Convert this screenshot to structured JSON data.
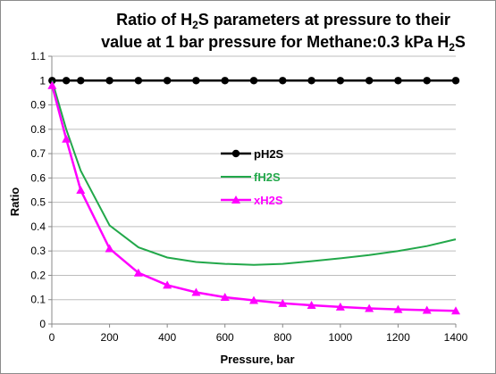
{
  "chart_data": {
    "type": "line",
    "title_parts": {
      "line1_a": "Ratio of H",
      "line1_sub": "2",
      "line1_b": "S parameters at pressure to their",
      "line2_a": "value at 1 bar pressure for Methane:0.3 kPa H",
      "line2_sub": "2",
      "line2_b": "S"
    },
    "xlabel": "Pressure, bar",
    "ylabel": "Ratio",
    "xlim": [
      0,
      1400
    ],
    "ylim": [
      0,
      1.1
    ],
    "xticks": [
      0,
      200,
      400,
      600,
      800,
      1000,
      1200,
      1400
    ],
    "xtick_labels": [
      "0",
      "200",
      "400",
      "600",
      "800",
      "1000",
      "1200",
      "1400"
    ],
    "yticks": [
      0,
      0.1,
      0.2,
      0.3,
      0.4,
      0.5,
      0.6,
      0.7,
      0.8,
      0.9,
      1,
      1.1
    ],
    "ytick_labels": [
      "0",
      "0.1",
      "0.2",
      "0.3",
      "0.4",
      "0.5",
      "0.6",
      "0.7",
      "0.8",
      "0.9",
      "1",
      "1.1"
    ],
    "grid": "horizontal",
    "legend_position": "center-left",
    "series": [
      {
        "name": "pH2S",
        "color": "#000000",
        "marker": "circle",
        "x": [
          1,
          50,
          100,
          200,
          300,
          400,
          500,
          600,
          700,
          800,
          900,
          1000,
          1100,
          1200,
          1300,
          1400
        ],
        "y": [
          1,
          1,
          1,
          1,
          1,
          1,
          1,
          1,
          1,
          1,
          1,
          1,
          1,
          1,
          1,
          1
        ]
      },
      {
        "name": "fH2S",
        "color": "#22a84a",
        "marker": "none",
        "x": [
          1,
          50,
          100,
          200,
          300,
          400,
          500,
          600,
          700,
          800,
          900,
          1000,
          1100,
          1200,
          1300,
          1400
        ],
        "y": [
          1,
          0.8,
          0.63,
          0.405,
          0.315,
          0.273,
          0.255,
          0.247,
          0.243,
          0.247,
          0.258,
          0.27,
          0.283,
          0.3,
          0.32,
          0.348
        ]
      },
      {
        "name": "xH2S",
        "color": "#ff00ff",
        "marker": "triangle",
        "x": [
          1,
          50,
          100,
          200,
          300,
          400,
          500,
          600,
          700,
          800,
          900,
          1000,
          1100,
          1200,
          1300,
          1400
        ],
        "y": [
          0.98,
          0.76,
          0.55,
          0.31,
          0.21,
          0.16,
          0.13,
          0.11,
          0.097,
          0.085,
          0.077,
          0.07,
          0.064,
          0.06,
          0.057,
          0.054
        ]
      }
    ]
  }
}
